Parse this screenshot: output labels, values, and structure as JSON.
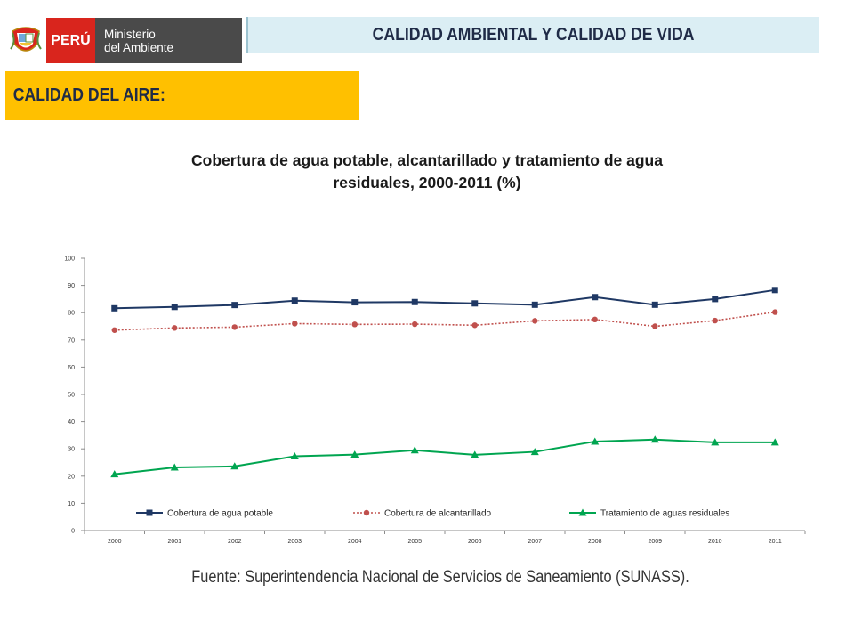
{
  "header": {
    "logo": {
      "country": "PERÚ",
      "ministry_line1": "Ministerio",
      "ministry_line2": "del Ambiente",
      "icon": "coat-of-arms-icon"
    },
    "title": "CALIDAD AMBIENTAL Y CALIDAD  DE VIDA",
    "section": "CALIDAD DEL AIRE:"
  },
  "chart_data": {
    "type": "line",
    "title": "Cobertura de agua potable, alcantarillado y tratamiento de agua residuales, 2000-2011 (%)",
    "title_line1": "Cobertura de agua potable, alcantarillado y tratamiento de agua",
    "title_line2": "residuales, 2000-2011 (%)",
    "x": [
      "2000",
      "2001",
      "2002",
      "2003",
      "2004",
      "2005",
      "2006",
      "2007",
      "2008",
      "2009",
      "2010",
      "2011"
    ],
    "ylim": [
      0,
      100
    ],
    "yticks": [
      "0",
      "10",
      "20",
      "30",
      "40",
      "50",
      "60",
      "70",
      "80",
      "90",
      "100"
    ],
    "grid": false,
    "legend_position": "bottom",
    "series": [
      {
        "name": "Cobertura de agua potable",
        "values": [
          81.6,
          82.1,
          82.8,
          84.4,
          83.8,
          83.9,
          83.4,
          82.9,
          85.7,
          82.9,
          85.0,
          88.3
        ],
        "color": "#1f3864",
        "marker": "square",
        "line_style": "solid"
      },
      {
        "name": "Cobertura de alcantarillado",
        "values": [
          73.6,
          74.4,
          74.7,
          76.0,
          75.7,
          75.8,
          75.4,
          77.0,
          77.5,
          75.0,
          77.1,
          80.2
        ],
        "color": "#c0504d",
        "marker": "circle",
        "line_style": "dotted"
      },
      {
        "name": "Tratamiento de aguas residuales",
        "values": [
          20.7,
          23.2,
          23.6,
          27.3,
          27.9,
          29.5,
          27.8,
          28.9,
          32.7,
          33.4,
          32.4,
          32.4
        ],
        "color": "#00a550",
        "marker": "triangle",
        "line_style": "solid"
      }
    ]
  },
  "footer": {
    "source": "Fuente: Superintendencia Nacional de Servicios de Saneamiento (SUNASS)."
  }
}
